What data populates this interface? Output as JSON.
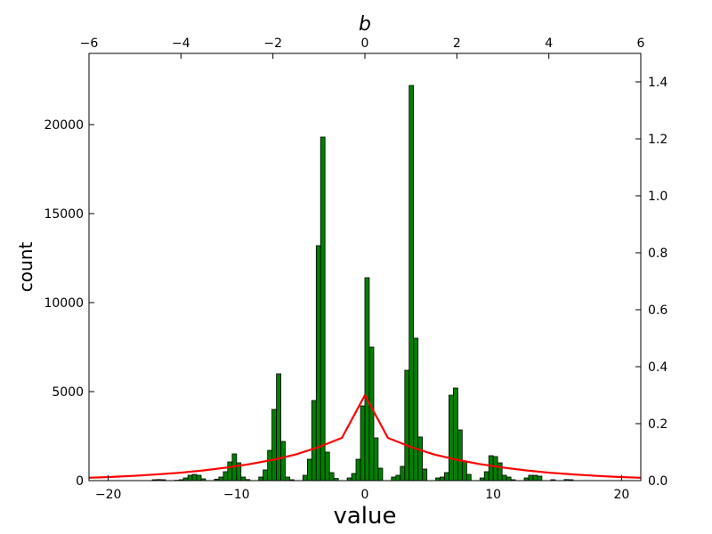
{
  "chart_data": {
    "type": "bar",
    "xlabel": "value",
    "ylabel": "count",
    "top_xlabel": "b",
    "xlim": [
      -21.5,
      21.5
    ],
    "ylim": [
      0,
      24000
    ],
    "y2lim": [
      0,
      1.5
    ],
    "top_xlim": [
      -6,
      6
    ],
    "x_ticks": [
      -20,
      -10,
      0,
      10,
      20
    ],
    "x_tick_labels": [
      "−20",
      "−10",
      "0",
      "10",
      "20"
    ],
    "y_ticks": [
      0,
      5000,
      10000,
      15000,
      20000
    ],
    "y_tick_labels": [
      "0",
      "5000",
      "10000",
      "15000",
      "20000"
    ],
    "y2_ticks": [
      0,
      0.2,
      0.4,
      0.6,
      0.8,
      1.0,
      1.2,
      1.4
    ],
    "y2_tick_labels": [
      "0.0",
      "0.2",
      "0.4",
      "0.6",
      "0.8",
      "1.0",
      "1.2",
      "1.4"
    ],
    "top_ticks": [
      -6,
      -4,
      -2,
      0,
      2,
      4,
      6
    ],
    "top_tick_labels": [
      "−6",
      "−4",
      "−2",
      "0",
      "2",
      "4",
      "6"
    ],
    "bar_color": "#008000",
    "bar_edge_color": "#000000",
    "bin_width": 0.345,
    "histogram": {
      "x": [
        -16.4,
        -16.05,
        -15.7,
        -14.66,
        -14.31,
        -13.97,
        -13.62,
        -13.28,
        -12.93,
        -12.59,
        -11.55,
        -11.21,
        -10.86,
        -10.52,
        -10.17,
        -9.83,
        -9.48,
        -9.14,
        -8.1,
        -7.76,
        -7.41,
        -7.07,
        -6.72,
        -6.38,
        -6.03,
        -5.69,
        -4.66,
        -4.31,
        -3.97,
        -3.62,
        -3.28,
        -2.93,
        -2.59,
        -2.24,
        -1.21,
        -0.86,
        -0.52,
        -0.17,
        0.17,
        0.52,
        0.86,
        1.21,
        2.24,
        2.59,
        2.93,
        3.28,
        3.62,
        3.97,
        4.31,
        4.66,
        5.69,
        6.03,
        6.38,
        6.72,
        7.07,
        7.41,
        7.76,
        8.1,
        9.14,
        9.48,
        9.83,
        10.17,
        10.52,
        10.86,
        11.21,
        11.55,
        12.59,
        12.93,
        13.28,
        13.62,
        14.66,
        15.7,
        16.05
      ],
      "counts": [
        50,
        60,
        50,
        20,
        50,
        150,
        300,
        350,
        300,
        100,
        80,
        200,
        500,
        1050,
        1500,
        1000,
        200,
        60,
        200,
        600,
        1700,
        4000,
        6000,
        2200,
        200,
        50,
        300,
        1200,
        4500,
        13200,
        19300,
        1600,
        450,
        120,
        150,
        400,
        1200,
        4200,
        11400,
        7500,
        2400,
        700,
        200,
        300,
        800,
        6200,
        22200,
        8000,
        2450,
        650,
        150,
        200,
        450,
        4800,
        5200,
        2850,
        1100,
        350,
        150,
        500,
        1400,
        1350,
        1000,
        300,
        200,
        50,
        150,
        300,
        300,
        250,
        50,
        60,
        50
      ]
    },
    "series": [
      {
        "type": "line",
        "color": "#ff0000",
        "axis": "top-right",
        "x": [
          -6,
          -5.5,
          -5,
          -4.5,
          -4,
          -3.5,
          -3,
          -2.5,
          -2,
          -1.5,
          -1,
          -0.5,
          0,
          0.5,
          1,
          1.5,
          2,
          2.5,
          3,
          3.5,
          4,
          4.5,
          5,
          5.5,
          6
        ],
        "y": [
          0.01,
          0.013,
          0.017,
          0.022,
          0.028,
          0.036,
          0.046,
          0.058,
          0.073,
          0.092,
          0.118,
          0.15,
          0.3,
          0.15,
          0.118,
          0.092,
          0.073,
          0.058,
          0.046,
          0.036,
          0.028,
          0.022,
          0.017,
          0.013,
          0.01
        ]
      }
    ],
    "grid": false
  }
}
